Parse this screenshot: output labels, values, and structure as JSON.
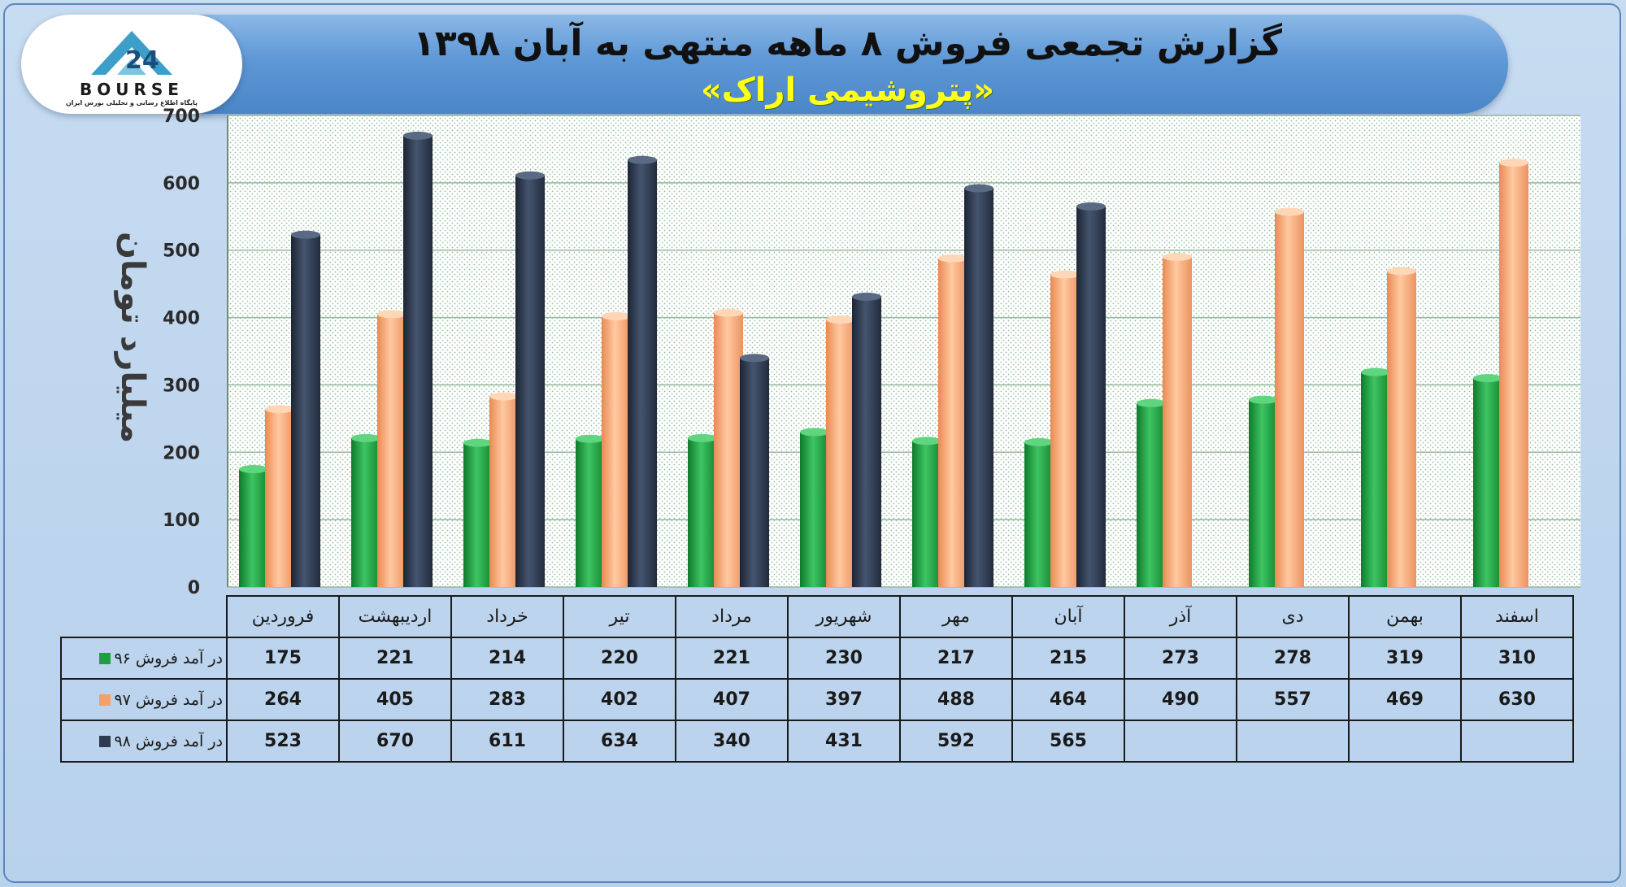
{
  "title": "گزارش تجمعی فروش ۸ ماهه منتهی به آبان ۱۳۹۸",
  "subtitle": "«پتروشیمی اراک»",
  "logo": {
    "text": "BOURSE",
    "tagline": "پایگاه اطلاع رسانی و تحلیلی بورس ایران"
  },
  "colors": {
    "series_96": "#1fa040",
    "series_97": "#f4a06a",
    "series_98": "#2d3a4f"
  },
  "chart_data": {
    "type": "bar",
    "ylabel": "میلیارد تومان",
    "ylim": [
      0,
      700
    ],
    "yticks": [
      "0",
      "100",
      "200",
      "300",
      "400",
      "500",
      "600",
      "700"
    ],
    "grid": true,
    "categories": [
      "فروردین",
      "اردیبهشت",
      "خرداد",
      "تیر",
      "مرداد",
      "شهریور",
      "مهر",
      "آبان",
      "آذر",
      "دی",
      "بهمن",
      "اسفند"
    ],
    "series": [
      {
        "name": "در آمد فروش ۹۶",
        "values": [
          175,
          221,
          214,
          220,
          221,
          230,
          217,
          215,
          273,
          278,
          319,
          310
        ]
      },
      {
        "name": "در آمد فروش ۹۷",
        "values": [
          264,
          405,
          283,
          402,
          407,
          397,
          488,
          464,
          490,
          557,
          469,
          630
        ]
      },
      {
        "name": "در آمد فروش ۹۸",
        "values": [
          523,
          670,
          611,
          634,
          340,
          431,
          592,
          565,
          null,
          null,
          null,
          null
        ]
      }
    ]
  }
}
